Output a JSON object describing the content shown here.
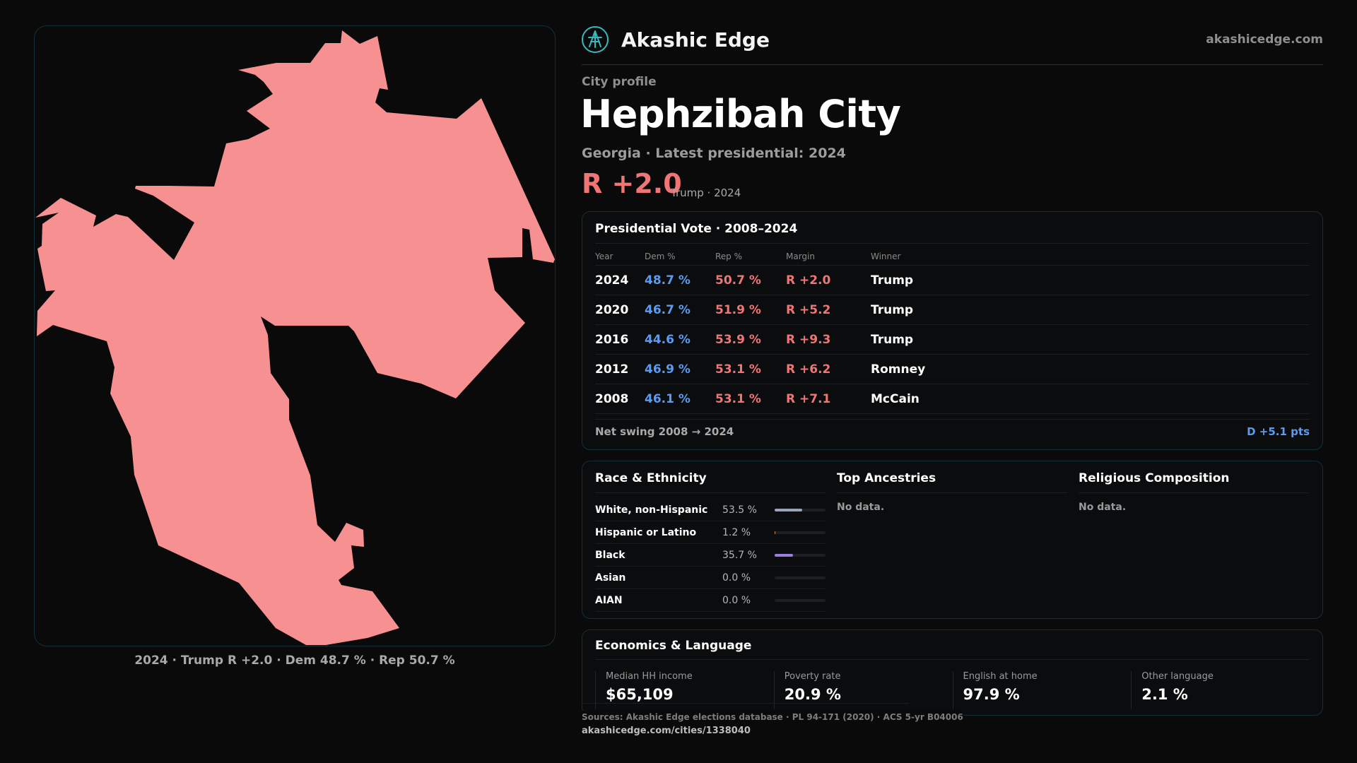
{
  "map": {
    "caption": "2024 · Trump R +2.0 · Dem 48.7 % · Rep 50.7 %",
    "fill_color": "#f79191"
  },
  "header": {
    "brand_name": "Akashic Edge",
    "brand_icon": "akashic-edge-logo-icon",
    "brand_url": "akashicedge.com",
    "accent": "#35b9bf"
  },
  "profile": {
    "kicker": "City profile",
    "title": "Hephzibah City",
    "subtitle": "Georgia · Latest presidential: 2024",
    "margin": "R +2.0",
    "margin_note": "Trump · 2024",
    "rep_color": "#f07575",
    "dem_color": "#5b9cf2"
  },
  "presidential": {
    "title": "Presidential Vote · 2008–2024",
    "headers": {
      "year": "Year",
      "dem": "Dem %",
      "rep": "Rep %",
      "margin": "Margin",
      "winner": "Winner"
    },
    "rows": [
      {
        "year": "2024",
        "dem": "48.7 %",
        "rep": "50.7 %",
        "margin": "R +2.0",
        "winner": "Trump"
      },
      {
        "year": "2020",
        "dem": "46.7 %",
        "rep": "51.9 %",
        "margin": "R +5.2",
        "winner": "Trump"
      },
      {
        "year": "2016",
        "dem": "44.6 %",
        "rep": "53.9 %",
        "margin": "R +9.3",
        "winner": "Trump"
      },
      {
        "year": "2012",
        "dem": "46.9 %",
        "rep": "53.1 %",
        "margin": "R +6.2",
        "winner": "Romney"
      },
      {
        "year": "2008",
        "dem": "46.1 %",
        "rep": "53.1 %",
        "margin": "R +7.1",
        "winner": "McCain"
      }
    ],
    "swing_label": "Net swing 2008 → 2024",
    "swing_value": "D +5.1 pts"
  },
  "race": {
    "title": "Race & Ethnicity",
    "rows": [
      {
        "label": "White, non-Hispanic",
        "pct": "53.5 %",
        "fraction": 0.535,
        "color": "#9aa3b8"
      },
      {
        "label": "Hispanic or Latino",
        "pct": "1.2 %",
        "fraction": 0.012,
        "color": "#e08a3c"
      },
      {
        "label": "Black",
        "pct": "35.7 %",
        "fraction": 0.357,
        "color": "#9b7fe0"
      },
      {
        "label": "Asian",
        "pct": "0.0 %",
        "fraction": 0.0,
        "color": "#5bc0a0"
      },
      {
        "label": "AIAN",
        "pct": "0.0 %",
        "fraction": 0.0,
        "color": "#c08a5b"
      }
    ]
  },
  "ancestries": {
    "title": "Top Ancestries",
    "empty": "No data."
  },
  "religion": {
    "title": "Religious Composition",
    "empty": "No data."
  },
  "economics": {
    "title": "Economics & Language",
    "items": [
      {
        "label": "Median HH income",
        "value": "$65,109"
      },
      {
        "label": "Poverty rate",
        "value": "20.9 %"
      },
      {
        "label": "English at home",
        "value": "97.9 %"
      },
      {
        "label": "Other language",
        "value": "2.1 %"
      }
    ]
  },
  "footer": {
    "sources": "Sources: Akashic Edge elections database · PL 94-171 (2020) · ACS 5-yr B04006",
    "url": "akashicedge.com/cities/1338040"
  }
}
